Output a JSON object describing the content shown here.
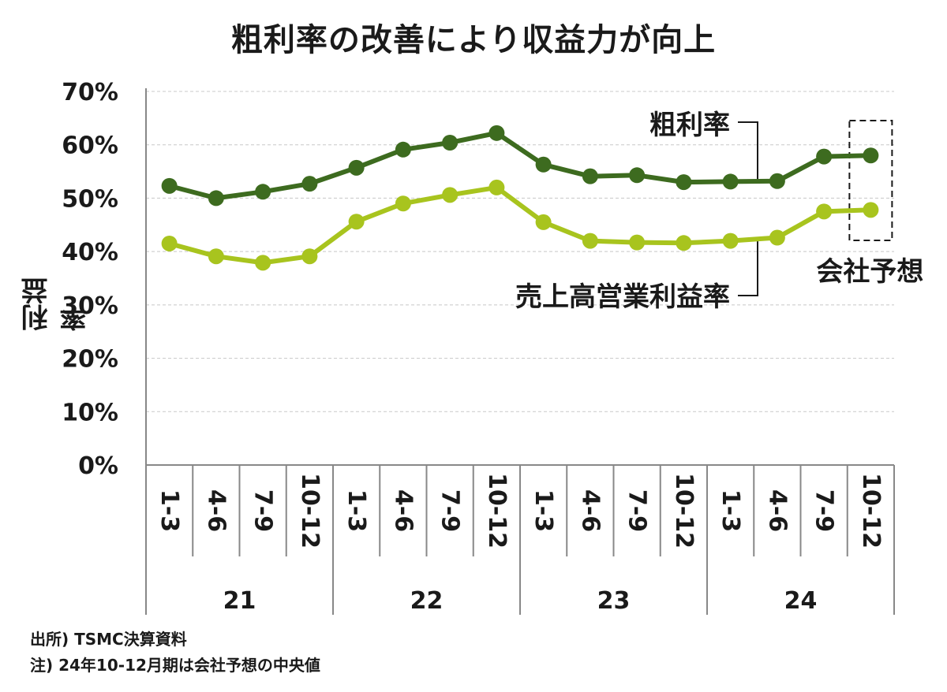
{
  "chart_data": {
    "type": "line",
    "title": "粗利率の改善により収益力が向上",
    "ylabel": "利益率",
    "ylim": [
      0,
      70
    ],
    "yticks": [
      "0%",
      "10%",
      "20%",
      "30%",
      "40%",
      "50%",
      "60%",
      "70%"
    ],
    "categories": [
      "1-3",
      "4-6",
      "7-9",
      "10-12",
      "1-3",
      "4-6",
      "7-9",
      "10-12",
      "1-3",
      "4-6",
      "7-9",
      "10-12",
      "1-3",
      "4-6",
      "7-9",
      "10-12"
    ],
    "years": [
      "21",
      "22",
      "23",
      "24"
    ],
    "grid": true,
    "series": [
      {
        "name": "粗利率",
        "color": "#3d6b1f",
        "values": [
          52.3,
          50.0,
          51.2,
          52.7,
          55.7,
          59.1,
          60.4,
          62.2,
          56.3,
          54.1,
          54.3,
          53.0,
          53.1,
          53.2,
          57.8,
          58.0
        ]
      },
      {
        "name": "売上高営業利益率",
        "color": "#a8c41e",
        "values": [
          41.5,
          39.1,
          37.9,
          39.1,
          45.6,
          49.0,
          50.6,
          52.0,
          45.5,
          42.0,
          41.7,
          41.6,
          42.0,
          42.6,
          47.5,
          47.8
        ]
      }
    ],
    "forecast_label": "会社予想"
  },
  "notes": {
    "source": "出所) TSMC決算資料",
    "note": "注) 24年10-12月期は会社予想の中央値"
  }
}
